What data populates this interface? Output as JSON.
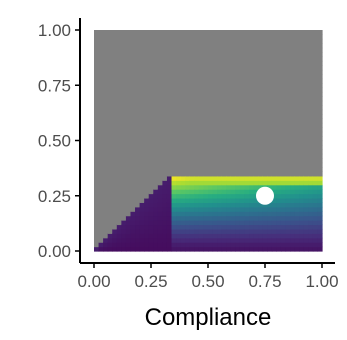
{
  "chart_data": {
    "type": "heatmap",
    "title": "",
    "xlabel": "Compliance",
    "ylabel": "",
    "xlim": [
      0,
      1
    ],
    "ylim": [
      0,
      1
    ],
    "x_ticks": [
      "0.00",
      "0.25",
      "0.50",
      "0.75",
      "1.00"
    ],
    "y_ticks": [
      "0.00",
      "0.25",
      "0.50",
      "0.75",
      "1.00"
    ],
    "x_tick_values": [
      0,
      0.25,
      0.5,
      0.75,
      1
    ],
    "y_tick_values": [
      0,
      0.25,
      0.5,
      0.75,
      1
    ],
    "colorscale": "viridis",
    "na_color": "#808080",
    "grid": false,
    "legend": "none",
    "feasible_region": {
      "description": "region below the line y = x from x=0 to x=0.35, then y < 0.35 up to x=1",
      "corner_x": 0.35,
      "cap_y": 0.35
    },
    "point": {
      "x": 0.75,
      "y": 0.25,
      "color": "#ffffff"
    }
  }
}
